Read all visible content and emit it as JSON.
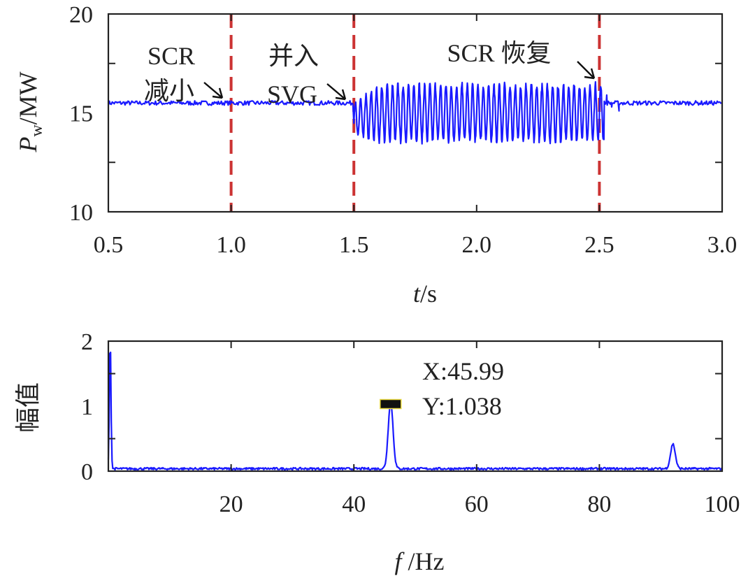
{
  "chart_data": [
    {
      "type": "line",
      "xlim": [
        0.5,
        3.0
      ],
      "ylim": [
        10,
        20
      ],
      "x_ticks": [
        "0.5",
        "1.0",
        "1.5",
        "2.0",
        "2.5",
        "3.0"
      ],
      "y_ticks": [
        "10",
        "15",
        "20"
      ],
      "xlabel": {
        "italic": "t",
        "rest": "/s"
      },
      "ylabel": {
        "italic": "P",
        "sub": "w",
        "rest": "/MW"
      },
      "series": [
        {
          "color": "#1a1aff",
          "segments": [
            {
              "x_start": 0.5,
              "x_end": 1.5,
              "shape": "steady",
              "value": 15.5
            },
            {
              "x_start": 1.5,
              "x_end": 2.52,
              "shape": "oscillation",
              "freq_hz": 45.99,
              "mean": 15.0,
              "high": 16.5,
              "low": 13.7
            },
            {
              "x_start": 2.52,
              "x_end": 3.0,
              "shape": "steady",
              "value": 15.5
            }
          ]
        }
      ],
      "event_lines": [
        {
          "x": 1.0,
          "color": "#cc3333"
        },
        {
          "x": 1.5,
          "color": "#cc3333"
        },
        {
          "x": 2.5,
          "color": "#cc3333"
        }
      ],
      "annotations": [
        {
          "lines": [
            "SCR",
            "减小"
          ]
        },
        {
          "lines": [
            "并入",
            "SVG"
          ]
        },
        {
          "lines": [
            "SCR 恢复"
          ]
        }
      ]
    },
    {
      "type": "line",
      "xlim": [
        0,
        100
      ],
      "ylim": [
        0,
        2
      ],
      "x_ticks": [
        "20",
        "40",
        "60",
        "80",
        "100"
      ],
      "y_ticks": [
        "0",
        "1",
        "2"
      ],
      "xlabel": {
        "italic": "f",
        "rest": " /Hz"
      },
      "ylabel": "幅值",
      "series": [
        {
          "color": "#1a1aff",
          "baseline": 0.02,
          "peaks": [
            {
              "x": 0.3,
              "y": 2.0
            },
            {
              "x": 45.99,
              "y": 1.038
            },
            {
              "x": 91.98,
              "y": 0.38
            }
          ]
        }
      ],
      "datatip": {
        "x_label": "X:45.99",
        "y_label": "Y:1.038",
        "x": 45.99,
        "y": 1.038
      }
    }
  ]
}
